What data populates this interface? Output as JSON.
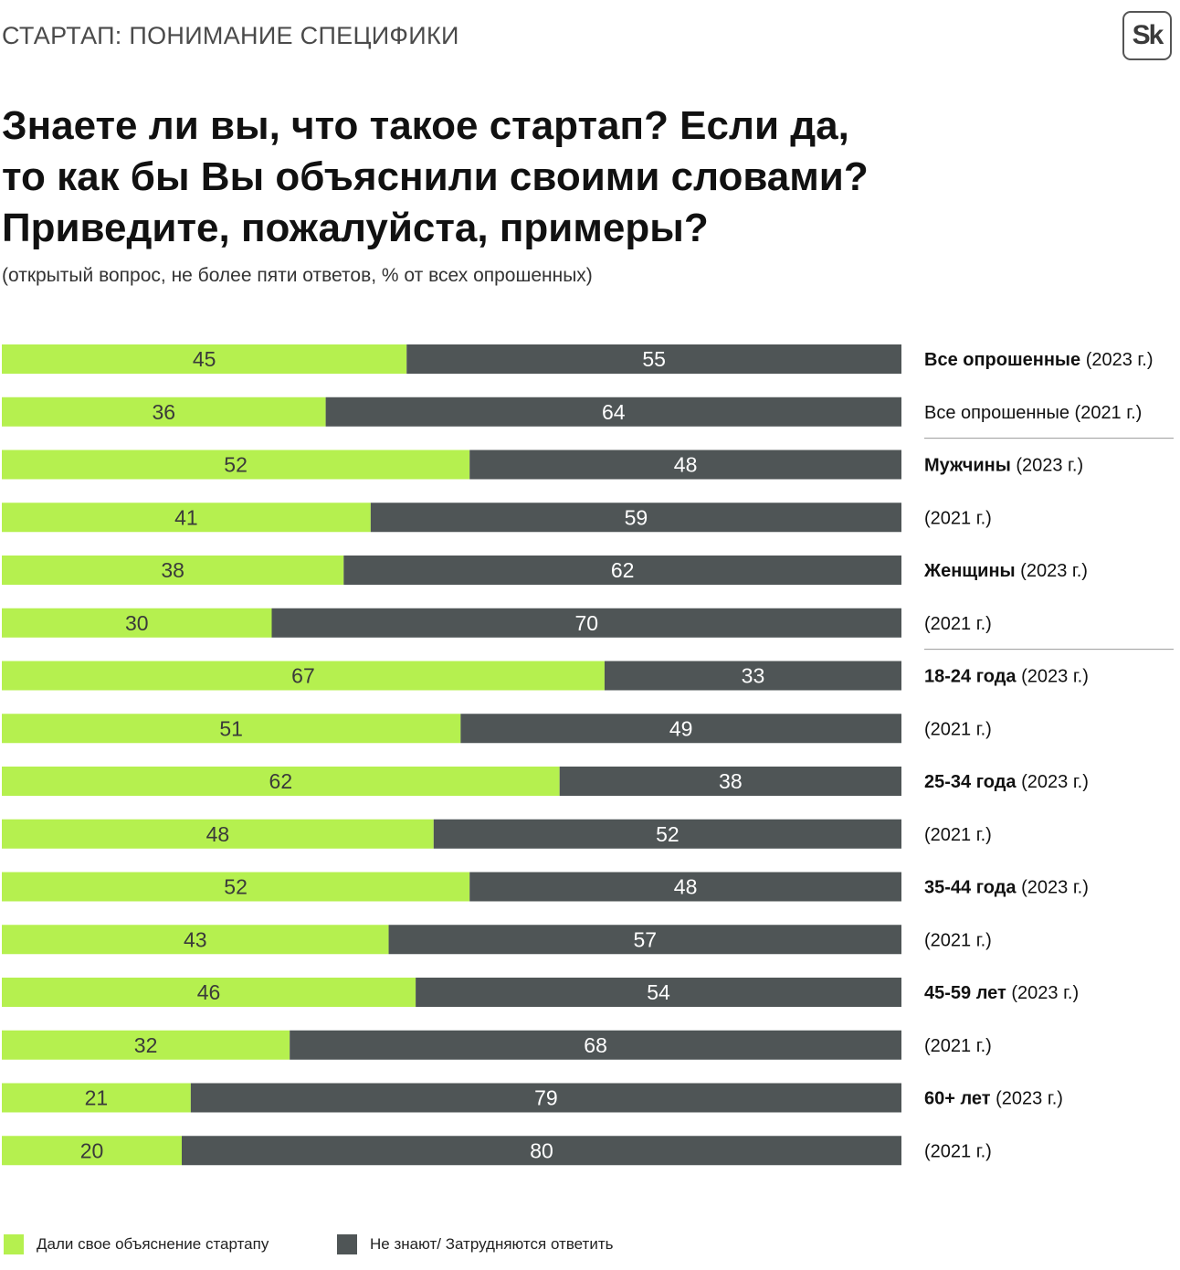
{
  "header": {
    "kicker": "СТАРТАП: ПОНИМАНИЕ СПЕЦИФИКИ",
    "logo_text": "Sk",
    "title_lines": [
      "Знаете ли вы, что такое стартап? Если да,",
      "то как бы Вы объяснили своими словами?",
      "Приведите, пожалуйста, примеры?"
    ],
    "subtitle": "(открытый вопрос, не более пяти ответов, % от всех опрошенных)"
  },
  "colors": {
    "green": "#b5f04f",
    "dark": "#4f5556",
    "separator": "#9a9a9a"
  },
  "chart_data": {
    "type": "bar",
    "orientation": "horizontal",
    "stacked": true,
    "xlim": [
      0,
      100
    ],
    "rows": [
      {
        "group": "Все опрошенные",
        "period": " (2023 г.)"
      },
      {
        "group": "",
        "period": "Все опрошенные (2021 г.)"
      },
      {
        "group": "Мужчины",
        "period": " (2023 г.)"
      },
      {
        "group": "",
        "period": "(2021 г.)"
      },
      {
        "group": "Женщины",
        "period": " (2023 г.)"
      },
      {
        "group": "",
        "period": "(2021 г.)"
      },
      {
        "group": "18-24 года",
        "period": " (2023 г.)"
      },
      {
        "group": "",
        "period": "(2021 г.)"
      },
      {
        "group": "25-34 года",
        "period": " (2023 г.)"
      },
      {
        "group": "",
        "period": "(2021 г.)"
      },
      {
        "group": "35-44 года",
        "period": " (2023 г.)"
      },
      {
        "group": "",
        "period": "(2021 г.)"
      },
      {
        "group": "45-59 лет",
        "period": " (2023 г.)"
      },
      {
        "group": "",
        "period": "(2021 г.)"
      },
      {
        "group": "60+ лет",
        "period": " (2023 г.)"
      },
      {
        "group": "",
        "period": "(2021 г.)"
      }
    ],
    "series": [
      {
        "name": "Дали свое объяснение стартапу",
        "color": "#b5f04f",
        "values": [
          45,
          36,
          52,
          41,
          38,
          30,
          67,
          51,
          62,
          48,
          52,
          43,
          46,
          32,
          21,
          20
        ]
      },
      {
        "name": "Не знают/ Затрудняются ответить",
        "color": "#4f5556",
        "values": [
          55,
          64,
          48,
          59,
          62,
          70,
          33,
          49,
          38,
          52,
          48,
          57,
          54,
          68,
          79,
          80
        ]
      }
    ],
    "separators_after_rows": [
      1,
      5
    ],
    "legend_position": "bottom-left"
  }
}
